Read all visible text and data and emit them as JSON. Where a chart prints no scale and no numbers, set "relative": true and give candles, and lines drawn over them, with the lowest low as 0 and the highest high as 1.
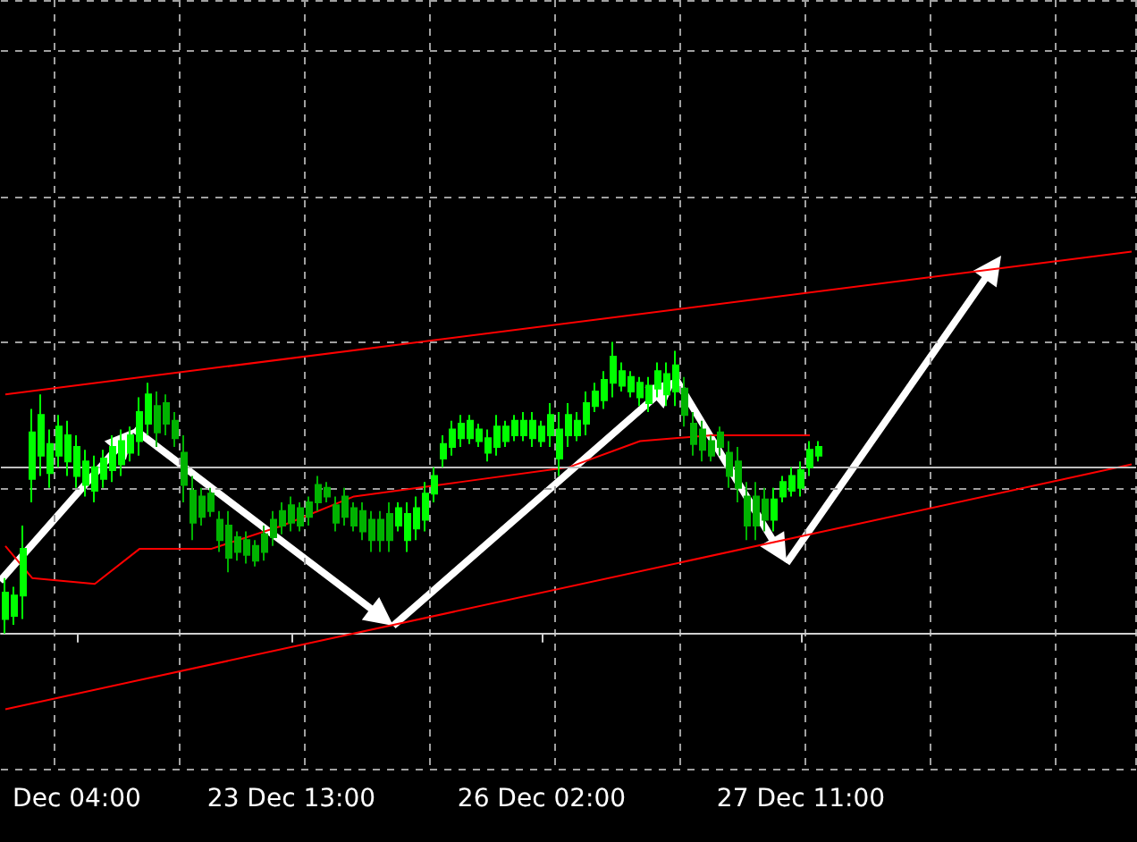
{
  "chart_data": {
    "type": "candlestick",
    "relative": true,
    "grid": true,
    "marker": "none",
    "categories": [
      null,
      null,
      null,
      null,
      null,
      null,
      null,
      null,
      "Dec 04:00",
      null,
      null,
      null,
      null,
      null,
      null,
      null,
      null,
      null,
      null,
      null,
      null,
      null,
      null,
      null,
      null,
      null,
      null,
      null,
      null,
      null,
      null,
      null,
      "23 Dec 13:00",
      null,
      null,
      null,
      null,
      null,
      null,
      null,
      null,
      null,
      null,
      null,
      null,
      null,
      null,
      null,
      null,
      null,
      null,
      null,
      null,
      null,
      null,
      null,
      null,
      null,
      null,
      null,
      "26 Dec 02:00",
      null,
      null,
      null,
      null,
      null,
      null,
      null,
      null,
      null,
      null,
      null,
      null,
      null,
      null,
      null,
      null,
      null,
      null,
      null,
      null,
      null,
      null,
      null,
      null,
      null,
      null,
      null,
      null,
      "27 Dec 11:00",
      null,
      null,
      null,
      null,
      null,
      null,
      null,
      null,
      null,
      null,
      null,
      null,
      null,
      null,
      null,
      null,
      null,
      null,
      null,
      null,
      null,
      null,
      null,
      null,
      null,
      null,
      null,
      null,
      null,
      null,
      null,
      null,
      null,
      null,
      null,
      null,
      null
    ],
    "colors": [
      "#00ff00",
      "#00ff00",
      "#00ff00",
      "#00ff00",
      "#00ff00",
      "#00ff00",
      "#00ff00",
      "#00ff00",
      "#00ff00",
      "#00ff00",
      "#00ff00",
      "#00ff00",
      "#00ff00",
      "#00ff00",
      "#00ff00",
      "#00ff00",
      "#00ff00",
      "#00b300",
      "#00b300",
      "#00b300",
      "#00b300",
      "#00b300",
      "#00b300",
      "#00b300",
      "#00b300",
      "#00b300",
      "#00b300",
      "#00b300",
      "#00b300",
      "#00b300",
      "#00b300",
      "#00b300",
      "#00b300",
      "#00b300",
      "#00b300",
      "#00b300",
      "#00b300",
      "#00b300",
      "#00b300",
      "#00b300",
      "#00b300",
      "#00b300",
      "#00b300",
      "#00b300",
      "#00ff00",
      "#00ff00",
      "#00ff00",
      "#00ff00",
      "#00ff00",
      "#00ff00",
      "#00ff00",
      "#00ff00",
      "#00ff00",
      "#00ff00",
      "#00ff00",
      "#00ff00",
      "#00ff00",
      "#00ff00",
      "#00ff00",
      "#00ff00",
      "#00ff00",
      "#00ff00",
      "#00ff00",
      "#00ff00",
      "#00ff00",
      "#00ff00",
      "#00ff00",
      "#00ff00",
      "#00ff00",
      "#00ff00",
      "#00ff00",
      "#00ff00",
      "#00ff00",
      "#00ff00",
      "#00ff00",
      "#00ff00",
      "#00b300",
      "#00b300",
      "#00b300",
      "#00b300",
      "#00b300",
      "#00b300",
      "#00b300",
      "#00b300",
      "#00b300",
      "#00b300",
      "#00ff00",
      "#00ff00",
      "#00ff00",
      "#00ff00",
      "#00ff00",
      "#00ff00",
      null,
      null,
      null,
      null,
      null,
      null,
      null,
      null,
      null,
      null,
      null,
      null,
      null,
      null,
      null,
      null,
      null,
      null,
      null,
      null,
      null,
      null,
      null,
      null,
      null,
      null,
      null,
      null,
      null,
      null,
      null,
      null,
      null,
      null,
      null
    ],
    "ohlc": [
      [
        0.05,
        0.19,
        0,
        0.14
      ],
      [
        0.06,
        0.16,
        0.03,
        0.13
      ],
      [
        0.13,
        0.37,
        0.05,
        0.29
      ],
      [
        0.53,
        0.77,
        0.45,
        0.69
      ],
      [
        0.61,
        0.82,
        0.54,
        0.75
      ],
      [
        0.55,
        0.7,
        0.5,
        0.65
      ],
      [
        0.61,
        0.75,
        0.57,
        0.71
      ],
      [
        0.59,
        0.73,
        0.54,
        0.68
      ],
      [
        0.54,
        0.68,
        0.5,
        0.64
      ],
      [
        0.51,
        0.63,
        0.47,
        0.59
      ],
      [
        0.49,
        0.61,
        0.45,
        0.57
      ],
      [
        0.53,
        0.63,
        0.5,
        0.6
      ],
      [
        0.56,
        0.68,
        0.52,
        0.64
      ],
      [
        0.58,
        0.7,
        0.54,
        0.66
      ],
      [
        0.62,
        0.71,
        0.59,
        0.68
      ],
      [
        0.66,
        0.81,
        0.61,
        0.76
      ],
      [
        0.72,
        0.86,
        0.68,
        0.82
      ],
      [
        0.78,
        0.83,
        0.64,
        0.69
      ],
      [
        0.79,
        0.82,
        0.68,
        0.72
      ],
      [
        0.73,
        0.76,
        0.64,
        0.67
      ],
      [
        0.62,
        0.68,
        0.45,
        0.51
      ],
      [
        0.49,
        0.54,
        0.32,
        0.38
      ],
      [
        0.47,
        0.5,
        0.37,
        0.4
      ],
      [
        0.48,
        0.5,
        0.4,
        0.42
      ],
      [
        0.39,
        0.42,
        0.28,
        0.32
      ],
      [
        0.37,
        0.42,
        0.21,
        0.26
      ],
      [
        0.33,
        0.35,
        0.25,
        0.28
      ],
      [
        0.32,
        0.35,
        0.24,
        0.27
      ],
      [
        0.3,
        0.32,
        0.23,
        0.25
      ],
      [
        0.34,
        0.37,
        0.25,
        0.28
      ],
      [
        0.39,
        0.42,
        0.3,
        0.33
      ],
      [
        0.42,
        0.45,
        0.34,
        0.37
      ],
      [
        0.44,
        0.47,
        0.35,
        0.38
      ],
      [
        0.43,
        0.45,
        0.35,
        0.37
      ],
      [
        0.45,
        0.47,
        0.37,
        0.4
      ],
      [
        0.51,
        0.54,
        0.42,
        0.45
      ],
      [
        0.5,
        0.52,
        0.45,
        0.47
      ],
      [
        0.44,
        0.47,
        0.35,
        0.38
      ],
      [
        0.47,
        0.5,
        0.37,
        0.4
      ],
      [
        0.43,
        0.45,
        0.35,
        0.37
      ],
      [
        0.42,
        0.45,
        0.32,
        0.35
      ],
      [
        0.39,
        0.42,
        0.28,
        0.32
      ],
      [
        0.39,
        0.42,
        0.28,
        0.32
      ],
      [
        0.41,
        0.45,
        0.28,
        0.32
      ],
      [
        0.37,
        0.45,
        0.35,
        0.43
      ],
      [
        0.32,
        0.45,
        0.28,
        0.41
      ],
      [
        0.36,
        0.47,
        0.32,
        0.43
      ],
      [
        0.39,
        0.52,
        0.35,
        0.48
      ],
      [
        0.48,
        0.57,
        0.45,
        0.54
      ],
      [
        0.6,
        0.68,
        0.57,
        0.65
      ],
      [
        0.64,
        0.73,
        0.61,
        0.7
      ],
      [
        0.67,
        0.75,
        0.64,
        0.72
      ],
      [
        0.67,
        0.75,
        0.65,
        0.73
      ],
      [
        0.66,
        0.72,
        0.64,
        0.7
      ],
      [
        0.62,
        0.7,
        0.59,
        0.67
      ],
      [
        0.64,
        0.75,
        0.61,
        0.71
      ],
      [
        0.66,
        0.73,
        0.64,
        0.71
      ],
      [
        0.68,
        0.75,
        0.66,
        0.73
      ],
      [
        0.68,
        0.76,
        0.66,
        0.73
      ],
      [
        0.67,
        0.76,
        0.64,
        0.73
      ],
      [
        0.66,
        0.73,
        0.64,
        0.71
      ],
      [
        0.68,
        0.79,
        0.64,
        0.75
      ],
      [
        0.6,
        0.76,
        0.54,
        0.7
      ],
      [
        0.68,
        0.79,
        0.64,
        0.75
      ],
      [
        0.68,
        0.76,
        0.66,
        0.73
      ],
      [
        0.72,
        0.83,
        0.68,
        0.79
      ],
      [
        0.78,
        0.86,
        0.76,
        0.83
      ],
      [
        0.8,
        0.9,
        0.77,
        0.87
      ],
      [
        0.86,
        1.0,
        0.81,
        0.95
      ],
      [
        0.85,
        0.93,
        0.83,
        0.9
      ],
      [
        0.83,
        0.9,
        0.81,
        0.88
      ],
      [
        0.81,
        0.88,
        0.78,
        0.86
      ],
      [
        0.79,
        0.88,
        0.76,
        0.85
      ],
      [
        0.84,
        0.93,
        0.81,
        0.9
      ],
      [
        0.82,
        0.93,
        0.78,
        0.89
      ],
      [
        0.83,
        0.97,
        0.78,
        0.92
      ],
      [
        0.84,
        0.88,
        0.71,
        0.75
      ],
      [
        0.72,
        0.76,
        0.61,
        0.65
      ],
      [
        0.7,
        0.73,
        0.59,
        0.63
      ],
      [
        0.66,
        0.68,
        0.59,
        0.61
      ],
      [
        0.69,
        0.71,
        0.61,
        0.64
      ],
      [
        0.62,
        0.66,
        0.5,
        0.54
      ],
      [
        0.59,
        0.64,
        0.45,
        0.5
      ],
      [
        0.47,
        0.52,
        0.32,
        0.37
      ],
      [
        0.47,
        0.52,
        0.32,
        0.37
      ],
      [
        0.46,
        0.5,
        0.35,
        0.39
      ],
      [
        0.39,
        0.5,
        0.35,
        0.46
      ],
      [
        0.47,
        0.54,
        0.45,
        0.52
      ],
      [
        0.49,
        0.57,
        0.47,
        0.54
      ],
      [
        0.5,
        0.59,
        0.47,
        0.56
      ],
      [
        0.57,
        0.66,
        0.54,
        0.63
      ],
      [
        0.61,
        0.66,
        0.59,
        0.64
      ],
      null,
      null,
      null,
      null,
      null,
      null,
      null,
      null,
      null,
      null,
      null,
      null,
      null,
      null,
      null,
      null,
      null,
      null,
      null,
      null,
      null,
      null,
      null,
      null,
      null,
      null,
      null,
      null,
      null,
      null,
      null,
      null,
      null,
      null,
      null
    ],
    "series": [
      {
        "type": "line",
        "color": "#ff0000",
        "values": [
          0.82,
          null,
          null,
          null,
          null,
          null,
          null,
          null,
          null,
          null,
          null,
          null,
          null,
          null,
          null,
          null,
          null,
          null,
          null,
          null,
          null,
          null,
          null,
          null,
          null,
          null,
          null,
          null,
          null,
          null,
          null,
          null,
          null,
          null,
          null,
          null,
          null,
          null,
          null,
          null,
          null,
          null,
          null,
          null,
          null,
          null,
          null,
          null,
          null,
          null,
          null,
          null,
          null,
          null,
          null,
          null,
          null,
          null,
          null,
          null,
          null,
          null,
          null,
          null,
          null,
          null,
          null,
          null,
          null,
          null,
          null,
          null,
          null,
          null,
          null,
          null,
          null,
          null,
          null,
          null,
          null,
          null,
          null,
          null,
          null,
          null,
          null,
          null,
          null,
          null,
          null,
          null,
          null,
          null,
          null,
          null,
          null,
          null,
          null,
          null,
          null,
          null,
          null,
          null,
          null,
          null,
          null,
          null,
          null,
          null,
          null,
          null,
          null,
          null,
          null,
          null,
          null,
          null,
          null,
          null,
          null,
          null,
          null,
          null,
          null,
          null,
          1.31
        ]
      },
      {
        "type": "line",
        "color": "#ff0000",
        "values": [
          -0.26,
          null,
          null,
          null,
          null,
          null,
          null,
          null,
          null,
          null,
          null,
          null,
          null,
          null,
          null,
          null,
          null,
          null,
          null,
          null,
          null,
          null,
          null,
          null,
          null,
          null,
          null,
          null,
          null,
          null,
          null,
          null,
          null,
          null,
          null,
          null,
          null,
          null,
          null,
          null,
          null,
          null,
          null,
          null,
          null,
          null,
          null,
          null,
          null,
          null,
          null,
          null,
          null,
          null,
          null,
          null,
          null,
          null,
          null,
          null,
          null,
          null,
          null,
          null,
          null,
          null,
          null,
          null,
          null,
          null,
          null,
          null,
          null,
          null,
          null,
          null,
          null,
          null,
          null,
          null,
          null,
          null,
          null,
          null,
          null,
          null,
          null,
          null,
          null,
          null,
          null,
          null,
          null,
          null,
          null,
          null,
          null,
          null,
          null,
          null,
          null,
          null,
          null,
          null,
          null,
          null,
          null,
          null,
          null,
          null,
          null,
          null,
          null,
          null,
          null,
          null,
          null,
          null,
          null,
          null,
          null,
          null,
          null,
          null,
          null,
          null,
          0.58
        ]
      },
      {
        "type": "line",
        "color": "#ff0000",
        "values": [
          0.3,
          null,
          null,
          0.19,
          null,
          null,
          null,
          null,
          null,
          null,
          0.17,
          null,
          null,
          null,
          null,
          0.29,
          null,
          null,
          null,
          null,
          null,
          null,
          null,
          0.29,
          null,
          null,
          null,
          null,
          null,
          null,
          null,
          0.37,
          null,
          null,
          null,
          null,
          null,
          null,
          null,
          0.47,
          null,
          null,
          null,
          null,
          null,
          null,
          null,
          null,
          null,
          null,
          null,
          0.52,
          null,
          null,
          null,
          null,
          null,
          null,
          null,
          null,
          null,
          null,
          null,
          0.57,
          null,
          null,
          null,
          null,
          null,
          null,
          null,
          0.66,
          null,
          null,
          null,
          null,
          null,
          null,
          null,
          0.68,
          null,
          null,
          null,
          null,
          null,
          null,
          null,
          null,
          null,
          null,
          0.68,
          null,
          null,
          null,
          null,
          null,
          null,
          null,
          null,
          null,
          null,
          null,
          null,
          null,
          null,
          null,
          null,
          null,
          null,
          null,
          null,
          null,
          null,
          null,
          null,
          null,
          null,
          null,
          null,
          null,
          null,
          null,
          null,
          null,
          null,
          null,
          null
        ]
      }
    ],
    "ref_lines": [
      {
        "axis": "y",
        "value": 0.57,
        "color": "#c0c0c0"
      }
    ]
  }
}
